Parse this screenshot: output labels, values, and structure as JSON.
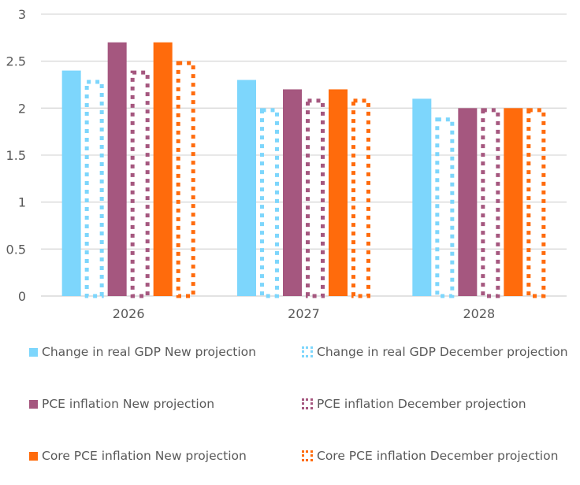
{
  "chart_data": {
    "type": "bar",
    "title": "",
    "xlabel": "",
    "ylabel": "",
    "ylim": [
      0,
      3
    ],
    "yticks": [
      "0",
      "0.5",
      "1",
      "1.5",
      "2",
      "2.5",
      "3"
    ],
    "ytick_values": [
      0,
      0.5,
      1,
      1.5,
      2,
      2.5,
      3
    ],
    "grid": true,
    "legend_position": "bottom",
    "categories": [
      "2026",
      "2027",
      "2028"
    ],
    "series": [
      {
        "name": "Change in real GDP New projection",
        "values": [
          2.4,
          2.3,
          2.1
        ],
        "color": "#7dd6fc",
        "style": "solid"
      },
      {
        "name": "Change in real GDP December projection",
        "values": [
          2.3,
          2.0,
          1.9
        ],
        "color": "#7dd6fc",
        "style": "dotted"
      },
      {
        "name": "PCE inflation New projection",
        "values": [
          2.7,
          2.2,
          2.0
        ],
        "color": "#a5577f",
        "style": "solid"
      },
      {
        "name": "PCE inflation December projection",
        "values": [
          2.4,
          2.1,
          2.0
        ],
        "color": "#a5577f",
        "style": "dotted"
      },
      {
        "name": "Core PCE inflation New projection",
        "values": [
          2.7,
          2.2,
          2.0
        ],
        "color": "#ff6b0c",
        "style": "solid"
      },
      {
        "name": "Core PCE inflation December projection",
        "values": [
          2.5,
          2.1,
          2.0
        ],
        "color": "#ff6b0c",
        "style": "dotted"
      }
    ]
  }
}
